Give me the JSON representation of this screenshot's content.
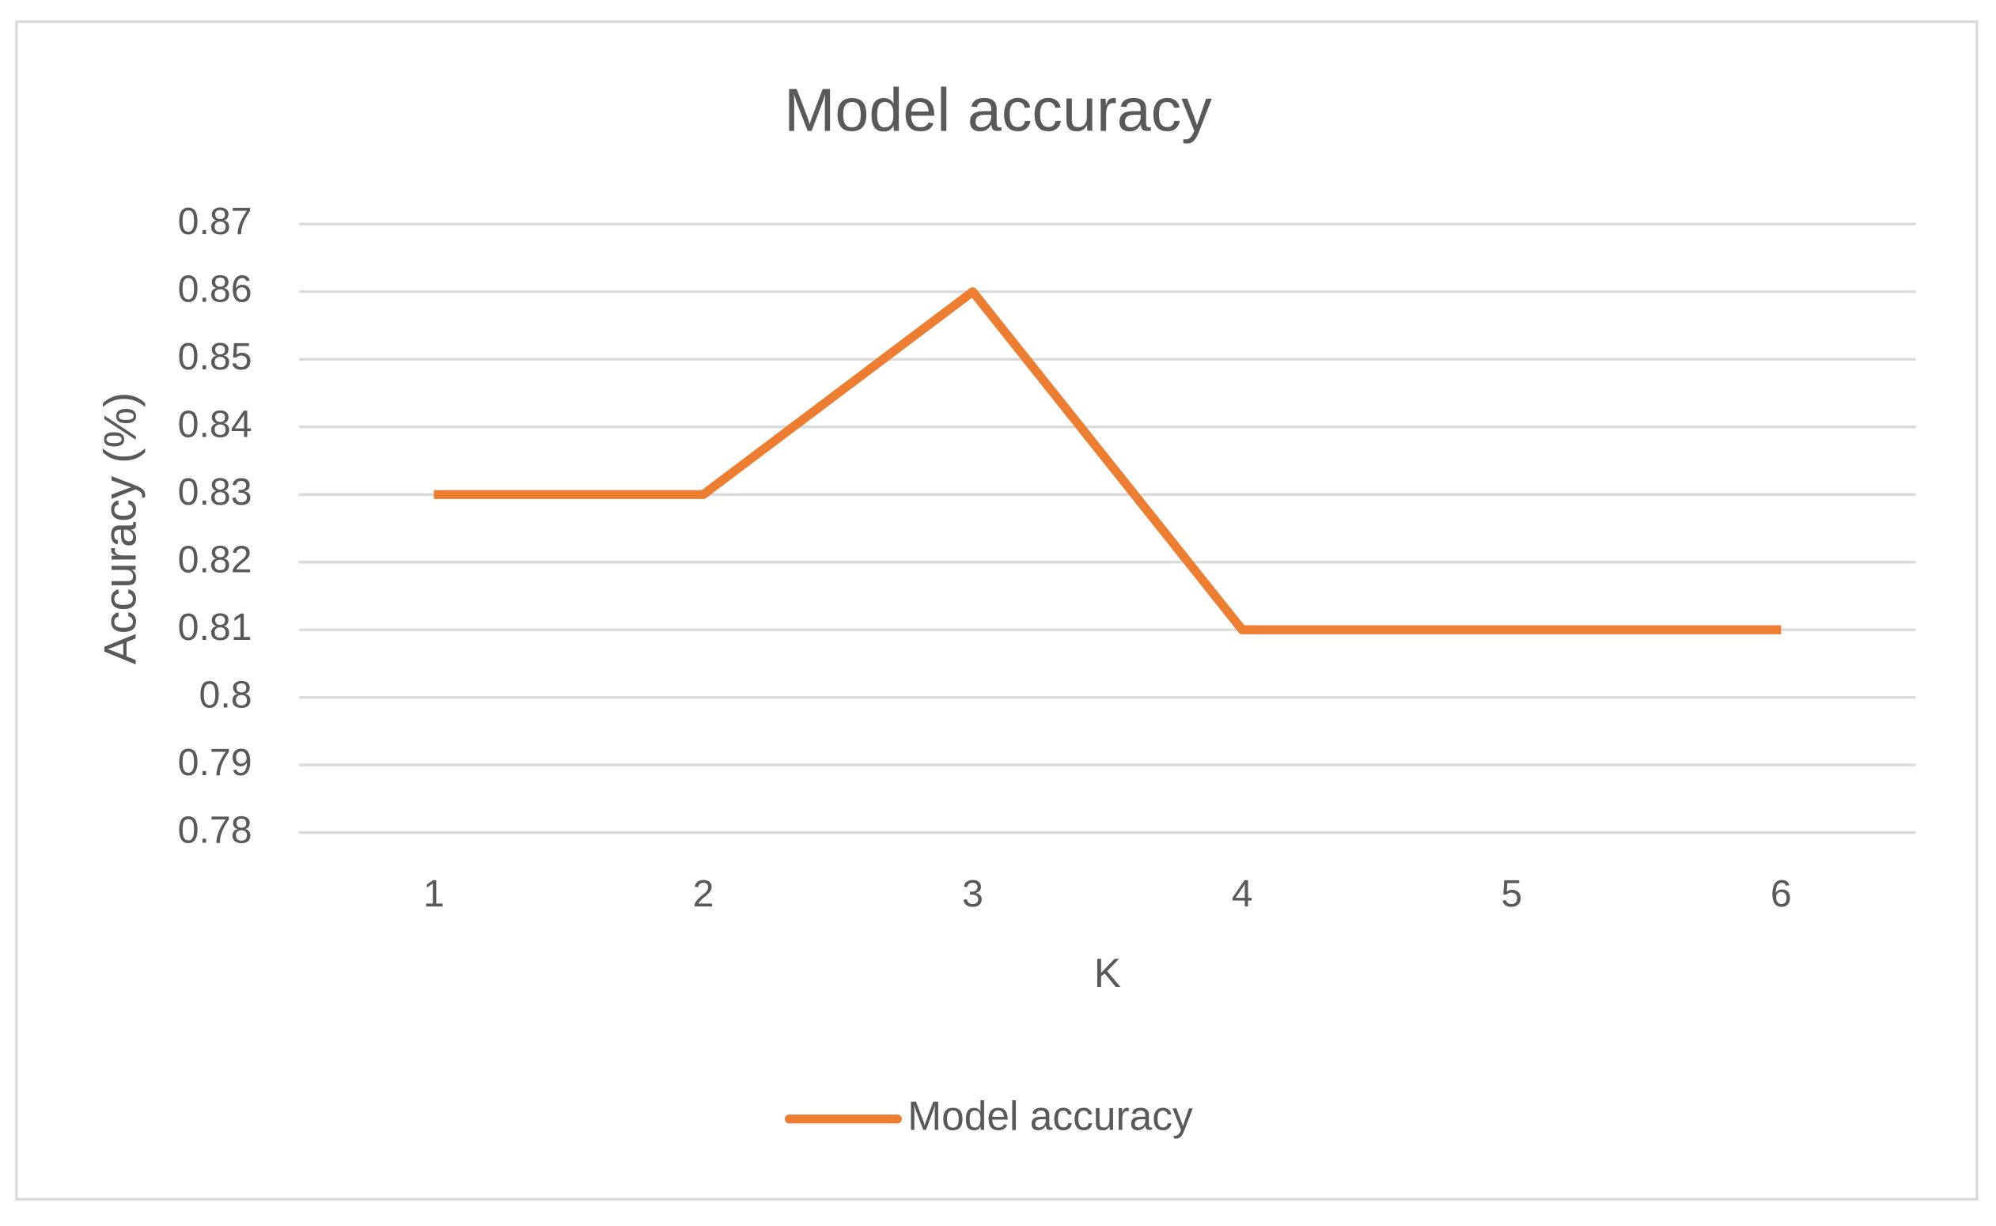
{
  "chart_data": {
    "type": "line",
    "title": "Model accuracy",
    "x_label": "K",
    "y_label": "Accuracy (%)",
    "categories": [
      "1",
      "2",
      "3",
      "4",
      "5",
      "6"
    ],
    "series": [
      {
        "name": "Model accuracy",
        "color": "#ed7d31",
        "values": [
          0.83,
          0.83,
          0.86,
          0.81,
          0.81,
          0.81
        ]
      }
    ],
    "ylim": [
      0.78,
      0.87
    ],
    "yticks": [
      0.78,
      0.79,
      0.8,
      0.81,
      0.82,
      0.83,
      0.84,
      0.85,
      0.86,
      0.87
    ],
    "grid": true,
    "legend": "bottom"
  }
}
